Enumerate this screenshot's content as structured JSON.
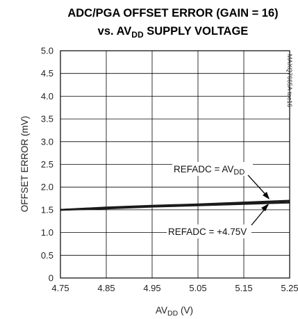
{
  "chart_data": {
    "type": "line",
    "title": {
      "line1": "ADC/PGA OFFSET ERROR (GAIN = 16)",
      "line2_prefix": "vs. AV",
      "line2_sub": "DD",
      "line2_suffix": " SUPPLY VOLTAGE"
    },
    "xlabel": {
      "prefix": "AV",
      "sub": "DD",
      "suffix": " (V)"
    },
    "ylabel": "OFFSET ERROR (mV)",
    "xlim": [
      4.75,
      5.25
    ],
    "ylim": [
      0,
      5.0
    ],
    "xticks": [
      "4.75",
      "4.85",
      "4.95",
      "5.05",
      "5.15",
      "5.25"
    ],
    "yticks": [
      "0",
      "0.5",
      "1.0",
      "1.5",
      "2.0",
      "2.5",
      "3.0",
      "3.5",
      "4.0",
      "4.5",
      "5.0"
    ],
    "grid": true,
    "side_label": "MAXQ7665A toc16",
    "series": [
      {
        "name": "REFADC = AVDD",
        "x": [
          4.75,
          4.85,
          4.95,
          5.05,
          5.15,
          5.25
        ],
        "y": [
          1.5,
          1.55,
          1.59,
          1.62,
          1.66,
          1.7
        ]
      },
      {
        "name": "REFADC = +4.75V",
        "x": [
          4.75,
          4.85,
          4.95,
          5.05,
          5.15,
          5.25
        ],
        "y": [
          1.5,
          1.53,
          1.57,
          1.6,
          1.63,
          1.66
        ]
      }
    ],
    "annotations": [
      {
        "text_prefix": "REFADC = AV",
        "text_sub": "DD",
        "arrow_to": {
          "x": 5.21,
          "y": 1.67
        }
      },
      {
        "text_prefix": "REFADC = +4.75V",
        "text_sub": "",
        "arrow_to": {
          "x": 5.21,
          "y": 1.62
        }
      }
    ]
  }
}
